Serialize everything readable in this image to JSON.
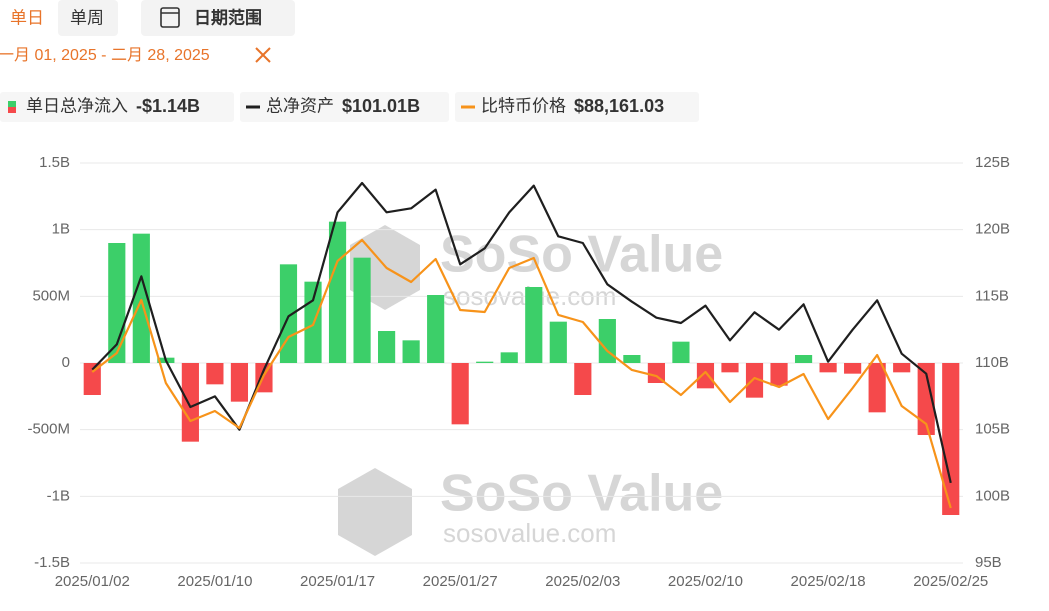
{
  "controls": {
    "tabs": [
      "单日",
      "单周"
    ],
    "date_button": "日期范围",
    "date_range": "一月 01, 2025 - 二月 28, 2025"
  },
  "watermark": {
    "brand": "SoSo Value",
    "site": "sosovalue.com"
  },
  "chart_data": {
    "type": "combo",
    "categories": [
      "2025/01/02",
      null,
      null,
      null,
      null,
      "2025/01/10",
      null,
      null,
      null,
      null,
      "2025/01/17",
      null,
      null,
      null,
      null,
      "2025/01/27",
      null,
      null,
      null,
      null,
      "2025/02/03",
      null,
      null,
      null,
      null,
      "2025/02/10",
      null,
      null,
      null,
      null,
      "2025/02/18",
      null,
      null,
      null,
      null,
      "2025/02/25"
    ],
    "series": [
      {
        "name": "单日总净流入",
        "type": "bar",
        "color": "#3ccf69",
        "negative_color": "#f5494b",
        "latest_label": "-$1.14B",
        "values": [
          -0.24,
          0.9,
          0.97,
          0.04,
          -0.59,
          -0.16,
          -0.29,
          -0.22,
          0.74,
          0.61,
          1.06,
          0.79,
          0.24,
          0.17,
          0.51,
          -0.46,
          0.01,
          0.08,
          0.57,
          0.31,
          -0.24,
          0.33,
          0.06,
          -0.15,
          0.16,
          -0.19,
          -0.07,
          -0.26,
          -0.17,
          0.06,
          -0.07,
          -0.08,
          -0.37,
          -0.07,
          -0.54,
          -1.14
        ]
      },
      {
        "name": "总净资产",
        "type": "line",
        "axis": "y2",
        "color": "#1f1f1f",
        "latest_label": "$101.01B",
        "values": [
          109.5,
          111.4,
          116.5,
          110.2,
          106.7,
          107.5,
          105.0,
          109.5,
          113.5,
          114.7,
          121.3,
          123.5,
          121.3,
          121.6,
          123.0,
          117.4,
          118.6,
          121.3,
          123.3,
          119.5,
          119.0,
          115.9,
          114.6,
          113.4,
          113.0,
          114.3,
          111.7,
          113.8,
          112.5,
          114.4,
          110.1,
          112.5,
          114.7,
          110.7,
          109.2,
          101.01
        ]
      },
      {
        "name": "比特币价格",
        "type": "line",
        "axis": "y3",
        "color": "#f7931a",
        "latest_label": "$88,161.03",
        "values": [
          94308,
          95167,
          97563,
          93811,
          92093,
          92545,
          91777,
          94173,
          95890,
          96433,
          99325,
          100275,
          99009,
          98376,
          99416,
          97110,
          97020,
          99009,
          99461,
          96885,
          96568,
          95257,
          94399,
          94127,
          93269,
          94308,
          92952,
          94037,
          93630,
          94218,
          92183,
          93585,
          95077,
          92772,
          91958,
          88161.03
        ]
      }
    ],
    "ylim": [
      -1.5,
      1.5
    ],
    "yticks": [
      {
        "value": 1.5,
        "label": "1.5B"
      },
      {
        "value": 1,
        "label": "1B"
      },
      {
        "value": 0.5,
        "label": "500M"
      },
      0,
      {
        "value": -0.5,
        "label": "-500M"
      },
      {
        "value": -1,
        "label": "-1B"
      },
      {
        "value": -1.5,
        "label": "-1.5B"
      }
    ],
    "y2lim": [
      95,
      125
    ],
    "y2ticks": [
      {
        "value": 125,
        "label": "125B"
      },
      {
        "value": 120,
        "label": "120B"
      },
      {
        "value": 115,
        "label": "115B"
      },
      {
        "value": 110,
        "label": "110B"
      },
      {
        "value": 105,
        "label": "105B"
      },
      {
        "value": 100,
        "label": "100B"
      },
      {
        "value": 95,
        "label": "95B"
      }
    ],
    "y3lim": [
      85675,
      103755
    ],
    "grid": true
  }
}
